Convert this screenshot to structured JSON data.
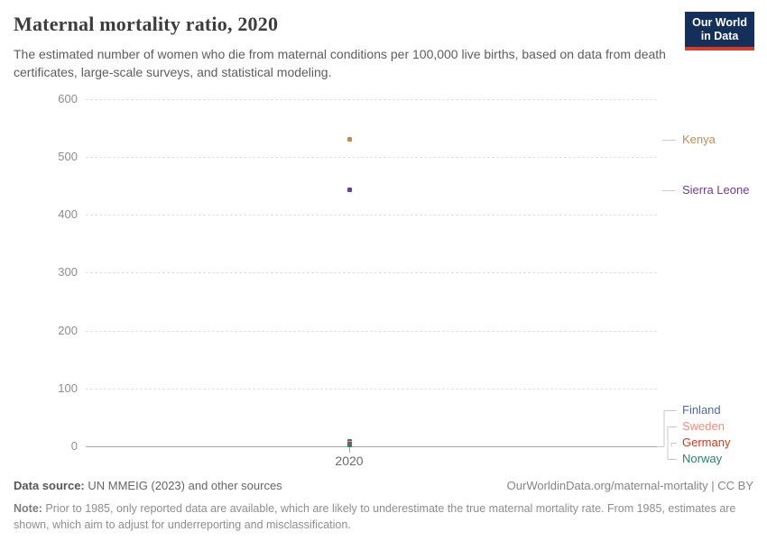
{
  "header": {
    "title": "Maternal mortality ratio, 2020",
    "subtitle": "The estimated number of women who die from maternal conditions per 100,000 live births, based on data from death certificates, large-scale surveys, and statistical modeling.",
    "logo": {
      "line1": "Our World",
      "line2": "in Data",
      "bg_color": "#14305A",
      "accent_color": "#D73C2C"
    }
  },
  "chart_data": {
    "type": "scatter",
    "title": "Maternal mortality ratio, 2020",
    "x_year": 2020,
    "x_tick_label": "2020",
    "ylabel": "",
    "unit": "deaths per 100,000 live births",
    "ylim": [
      0,
      600
    ],
    "yticks": [
      600,
      500,
      400,
      300,
      200,
      100,
      0
    ],
    "grid": "horizontal-dashed",
    "legend_position": "right-of-plot",
    "series": [
      {
        "name": "Kenya",
        "year": 2020,
        "value": 530,
        "color": "#BC8E5A"
      },
      {
        "name": "Sierra Leone",
        "year": 2020,
        "value": 443,
        "color": "#6D3E91"
      },
      {
        "name": "Finland",
        "year": 2020,
        "value": 8,
        "color": "#4C6A9C"
      },
      {
        "name": "Sweden",
        "year": 2020,
        "value": 5,
        "color": "#E8937C"
      },
      {
        "name": "Germany",
        "year": 2020,
        "value": 4,
        "color": "#C63D23"
      },
      {
        "name": "Norway",
        "year": 2020,
        "value": 2,
        "color": "#2C8465"
      }
    ]
  },
  "footer": {
    "datasource_label": "Data source:",
    "datasource_value": " UN MMEIG (2023) and other sources",
    "link": "OurWorldinData.org/maternal-mortality | CC BY",
    "note_label": "Note:",
    "note_value": " Prior to 1985, only reported data are available, which are likely to underestimate the true maternal mortality rate. From 1985, estimates are shown, which aim to adjust for underreporting and misclassification."
  }
}
